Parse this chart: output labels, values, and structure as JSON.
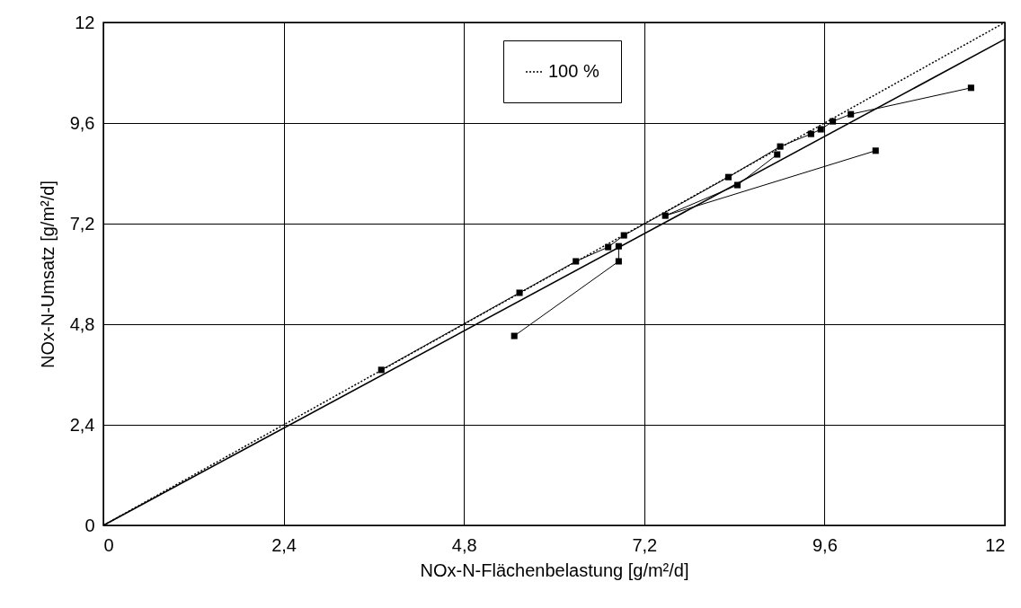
{
  "chart_data": {
    "type": "line",
    "xlabel": "NOx-N-Flächenbelastung [g/m²/d]",
    "ylabel": "NOx-N-Umsatz  [g/m²/d]",
    "xlim": [
      0,
      12
    ],
    "ylim": [
      0,
      12
    ],
    "xticks": [
      0,
      {
        "value": 2.4,
        "label": "2,4"
      },
      {
        "value": 4.8,
        "label": "4,8"
      },
      {
        "value": 7.2,
        "label": "7,2"
      },
      {
        "value": 9.6,
        "label": "9,6"
      },
      12
    ],
    "yticks": [
      0,
      {
        "value": 2.4,
        "label": "2,4"
      },
      {
        "value": 4.8,
        "label": "4,8"
      },
      {
        "value": 7.2,
        "label": "7,2"
      },
      {
        "value": 9.6,
        "label": "9,6"
      },
      12
    ],
    "grid": true,
    "legend": "top",
    "marker": "square",
    "series": [
      {
        "color": "#000000",
        "line_style": "solid",
        "x": [
          3.7,
          5.54,
          6.29,
          6.72,
          6.93,
          8.32,
          9.01,
          9.42,
          9.55,
          9.71,
          9.95,
          11.55
        ],
        "values": [
          3.71,
          5.55,
          6.3,
          6.64,
          6.92,
          8.31,
          9.04,
          9.34,
          9.45,
          9.64,
          9.81,
          10.44
        ]
      },
      {
        "color": "#000000",
        "line_style": "solid",
        "x": [
          5.47,
          6.86,
          6.86
        ],
        "values": [
          4.52,
          6.3,
          6.66
        ]
      },
      {
        "color": "#000000",
        "line_style": "solid",
        "x": [
          8.97,
          8.44,
          7.48,
          10.28
        ],
        "values": [
          8.85,
          8.12,
          7.39,
          8.94
        ]
      },
      {
        "color": "#000000",
        "marker": "none",
        "line_style": "solid",
        "x": [
          0,
          12
        ],
        "values": [
          0,
          11.6
        ]
      },
      {
        "name": "100 %",
        "color": "#000000",
        "marker": "none",
        "line_style": "dotted",
        "x": [
          0,
          12
        ],
        "values": [
          0,
          12
        ]
      }
    ]
  }
}
